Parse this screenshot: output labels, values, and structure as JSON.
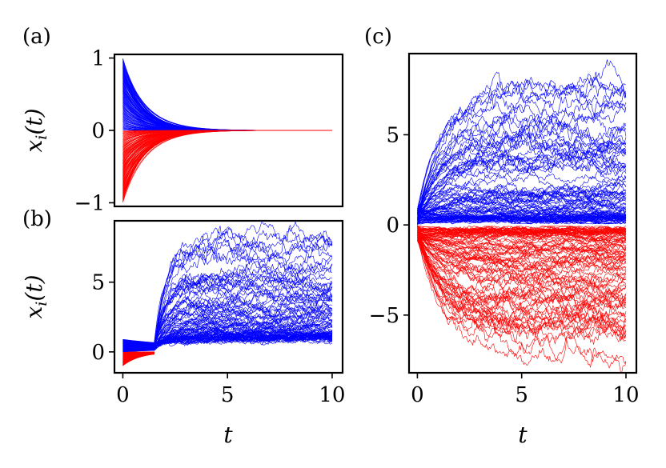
{
  "colors": {
    "positive": "#0000ff",
    "negative": "#ff0000"
  },
  "chart_data": [
    {
      "panel": "(a)",
      "type": "line",
      "title": "",
      "xlabel": "",
      "ylabel": "x_i(t)",
      "xlim": [
        -0.4,
        10.5
      ],
      "ylim": [
        -1.05,
        1.05
      ],
      "xticks": [],
      "yticks": [
        {
          "value": -1,
          "label": "−1"
        },
        {
          "value": 0,
          "label": "0"
        },
        {
          "value": 1,
          "label": "1"
        }
      ],
      "grid": false,
      "legend": "none",
      "description_of_series": "deterministic decay",
      "series": [
        {
          "group": "positive",
          "color": "#0000ff",
          "count": 100,
          "initial_range": [
            0,
            1
          ],
          "decay_rate": 1.0,
          "noise": 0
        },
        {
          "group": "negative",
          "color": "#ff0000",
          "count": 100,
          "initial_range": [
            -1,
            0
          ],
          "decay_rate": 1.0,
          "noise": 0
        }
      ]
    },
    {
      "panel": "(b)",
      "type": "line",
      "title": "",
      "xlabel": "t",
      "ylabel": "x_i(t)",
      "xlim": [
        -0.4,
        10.5
      ],
      "ylim": [
        -1.5,
        9.4
      ],
      "xticks": [
        {
          "value": 0,
          "label": "0"
        },
        {
          "value": 5,
          "label": "5"
        },
        {
          "value": 10,
          "label": "10"
        }
      ],
      "yticks": [
        {
          "value": 0,
          "label": "0"
        },
        {
          "value": 5,
          "label": "5"
        }
      ],
      "grid": false,
      "legend": "none",
      "switch_time": 1.5,
      "series": [
        {
          "group": "positive",
          "color": "#0000ff",
          "count": 100,
          "final_range": [
            1,
            8
          ]
        },
        {
          "group": "negative",
          "color": "#ff0000",
          "count": 100,
          "initial_range": [
            -1,
            0
          ]
        }
      ]
    },
    {
      "panel": "(c)",
      "type": "line",
      "title": "",
      "xlabel": "t",
      "ylabel": "",
      "xlim": [
        -0.4,
        10.5
      ],
      "ylim": [
        -8.2,
        9.5
      ],
      "xticks": [
        {
          "value": 0,
          "label": "0"
        },
        {
          "value": 5,
          "label": "5"
        },
        {
          "value": 10,
          "label": "10"
        }
      ],
      "yticks": [
        {
          "value": -5,
          "label": "−5"
        },
        {
          "value": 0,
          "label": "0"
        },
        {
          "value": 5,
          "label": "5"
        }
      ],
      "grid": false,
      "legend": "none",
      "series": [
        {
          "group": "positive",
          "color": "#0000ff",
          "count": 100,
          "final_range": [
            0.3,
            7.8
          ]
        },
        {
          "group": "negative",
          "color": "#ff0000",
          "count": 100,
          "final_range": [
            -7.2,
            -0.2
          ]
        }
      ]
    }
  ],
  "labels": {
    "a": "(a)",
    "b": "(b)",
    "c": "(c)",
    "ylabel_main": "x",
    "ylabel_sub": "i",
    "ylabel_tail": "(t)",
    "xlabel": "t"
  }
}
